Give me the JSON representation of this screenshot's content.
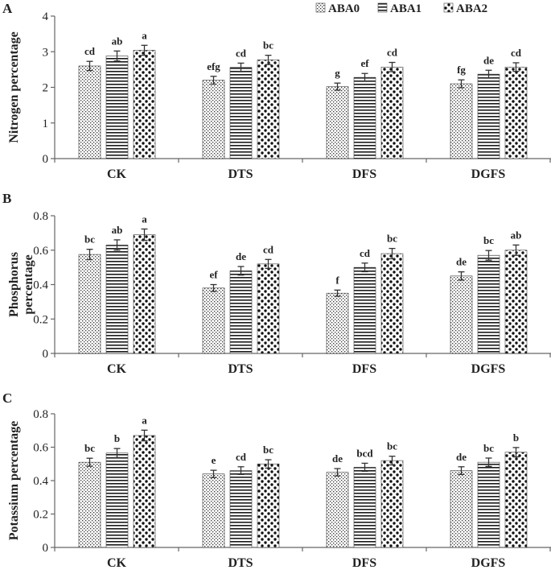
{
  "legend": [
    "ABA0",
    "ABA1",
    "ABA2"
  ],
  "chart_data": [
    {
      "type": "bar",
      "panel": "A",
      "ylabel": "Nitrogen percentage",
      "categories": [
        "CK",
        "DTS",
        "DFS",
        "DGFS"
      ],
      "ylim": [
        0,
        4
      ],
      "yticks": [
        0,
        1,
        2,
        3,
        4
      ],
      "series": [
        {
          "name": "ABA0",
          "values": [
            2.6,
            2.2,
            2.02,
            2.1
          ],
          "errors": [
            0.13,
            0.11,
            0.1,
            0.11
          ],
          "letters": [
            "cd",
            "efg",
            "g",
            "fg"
          ]
        },
        {
          "name": "ABA1",
          "values": [
            2.88,
            2.56,
            2.28,
            2.37
          ],
          "errors": [
            0.14,
            0.12,
            0.11,
            0.11
          ],
          "letters": [
            "ab",
            "cd",
            "ef",
            "de"
          ]
        },
        {
          "name": "ABA2",
          "values": [
            3.04,
            2.77,
            2.57,
            2.57
          ],
          "errors": [
            0.14,
            0.13,
            0.13,
            0.12
          ],
          "letters": [
            "a",
            "bc",
            "cd",
            "cd"
          ]
        }
      ]
    },
    {
      "type": "bar",
      "panel": "B",
      "ylabel": "Phosphorus percentage",
      "ylabel_lines": [
        "Phosphorus",
        "percentage"
      ],
      "categories": [
        "CK",
        "DTS",
        "DFS",
        "DGFS"
      ],
      "ylim": [
        0,
        0.8
      ],
      "yticks": [
        0,
        0.2,
        0.4,
        0.6,
        0.8
      ],
      "series": [
        {
          "name": "ABA0",
          "values": [
            0.575,
            0.38,
            0.35,
            0.45
          ],
          "errors": [
            0.03,
            0.02,
            0.018,
            0.024
          ],
          "letters": [
            "bc",
            "ef",
            "f",
            "de"
          ]
        },
        {
          "name": "ABA1",
          "values": [
            0.63,
            0.48,
            0.5,
            0.57
          ],
          "errors": [
            0.03,
            0.025,
            0.025,
            0.028
          ],
          "letters": [
            "ab",
            "de",
            "cd",
            "bc"
          ]
        },
        {
          "name": "ABA2",
          "values": [
            0.69,
            0.52,
            0.58,
            0.6
          ],
          "errors": [
            0.033,
            0.026,
            0.03,
            0.03
          ],
          "letters": [
            "a",
            "cd",
            "bc",
            "ab"
          ]
        }
      ]
    },
    {
      "type": "bar",
      "panel": "C",
      "ylabel": "Potassium percentage",
      "categories": [
        "CK",
        "DTS",
        "DFS",
        "DGFS"
      ],
      "ylim": [
        0,
        0.8
      ],
      "yticks": [
        0,
        0.2,
        0.4,
        0.6,
        0.8
      ],
      "series": [
        {
          "name": "ABA0",
          "values": [
            0.51,
            0.44,
            0.45,
            0.46
          ],
          "errors": [
            0.024,
            0.022,
            0.022,
            0.023
          ],
          "letters": [
            "bc",
            "e",
            "de",
            "de"
          ]
        },
        {
          "name": "ABA1",
          "values": [
            0.565,
            0.46,
            0.48,
            0.51
          ],
          "errors": [
            0.027,
            0.023,
            0.024,
            0.025
          ],
          "letters": [
            "b",
            "cd",
            "bcd",
            "bc"
          ]
        },
        {
          "name": "ABA2",
          "values": [
            0.67,
            0.5,
            0.52,
            0.57
          ],
          "errors": [
            0.032,
            0.025,
            0.026,
            0.028
          ],
          "letters": [
            "a",
            "bc",
            "bc",
            "b"
          ]
        }
      ]
    }
  ]
}
